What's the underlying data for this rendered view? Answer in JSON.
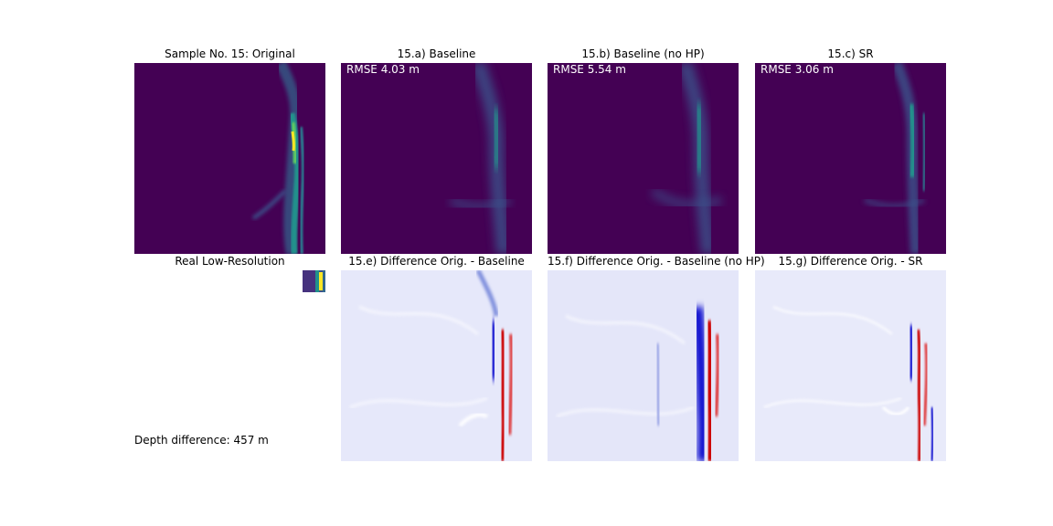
{
  "sample": {
    "title": "Sample No. 15: Original",
    "low_res_title": "Real Low-Resolution",
    "depth_difference": "Depth difference: 457 m"
  },
  "panels": [
    {
      "title": "15.a) Baseline",
      "rmse": "RMSE 4.03 m"
    },
    {
      "title": "15.b) Baseline (no HP)",
      "rmse": "RMSE 5.54 m"
    },
    {
      "title": "15.c) SR",
      "rmse": "RMSE 3.06 m"
    }
  ],
  "difference_panels": [
    {
      "title": "15.e) Difference Orig. - Baseline"
    },
    {
      "title": "15.f) Difference Orig. - Baseline (no HP)"
    },
    {
      "title": "15.g) Difference Orig. - SR"
    }
  ],
  "colors": {
    "viridis_dark": "#440154",
    "viridis_teal": "#21918c",
    "viridis_green": "#5ec962",
    "viridis_yellow": "#fde725",
    "diff_blue": "#0000cc",
    "diff_red": "#cc0000",
    "diff_bg": "#e6e8fa"
  }
}
